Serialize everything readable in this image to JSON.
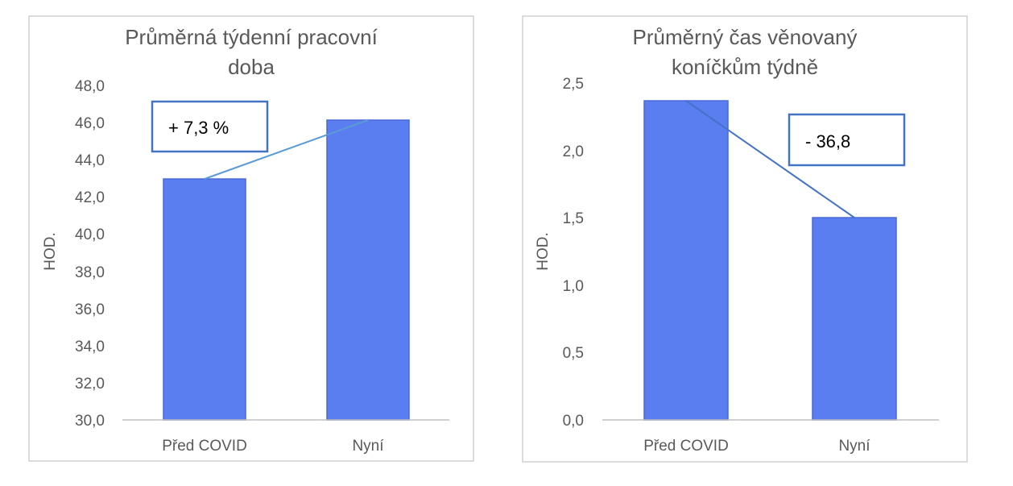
{
  "chart_data": [
    {
      "type": "bar",
      "title_lines": [
        "Průměrná týdenní pracovní",
        "doba"
      ],
      "ylabel": "HOD.",
      "categories": [
        "Před COVID",
        "Nyní"
      ],
      "values": [
        42.9,
        46.0
      ],
      "ylim": [
        30,
        48
      ],
      "yticks": [
        "30,0",
        "32,0",
        "34,0",
        "36,0",
        "38,0",
        "40,0",
        "42,0",
        "44,0",
        "46,0",
        "48,0"
      ],
      "annotation": "+ 7,3 %",
      "bar_color": "#5a7df0",
      "line_color": "#5b9bd5",
      "grid": false
    },
    {
      "type": "bar",
      "title_lines": [
        "Průměrný čas věnovaný",
        "koníčkům týdně"
      ],
      "ylabel": "HOD.",
      "categories": [
        "Před COVID",
        "Nyní"
      ],
      "values": [
        2.38,
        1.5
      ],
      "ylim": [
        0,
        2.5
      ],
      "yticks": [
        "0,0",
        "0,5",
        "1,0",
        "1,5",
        "2,0",
        "2,5"
      ],
      "annotation": "- 36,8",
      "bar_color": "#5a7df0",
      "line_color": "#4472c4",
      "grid": false
    }
  ]
}
